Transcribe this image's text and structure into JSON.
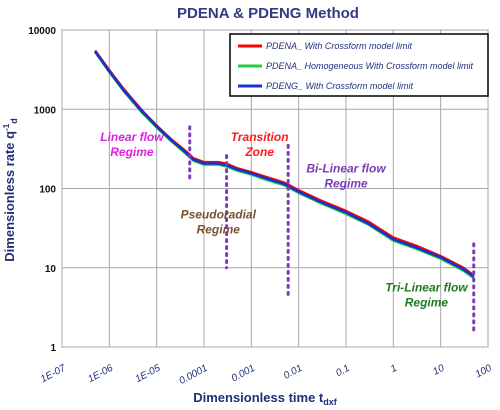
{
  "chart_data": {
    "type": "line",
    "title": "PDENA & PDENG Method",
    "xlabel": "Dimensionless time t",
    "xlabel_sub": "dxf",
    "ylabel": "Dimensionless rate q",
    "ylabel_sub": "-1",
    "ylabel_sub2": "d",
    "xscale": "log",
    "yscale": "log",
    "xlim": [
      1e-07,
      100
    ],
    "ylim": [
      1,
      10000
    ],
    "x_ticks": [
      "1E-07",
      "1E-06",
      "1E-05",
      "0.0001",
      "0.001",
      "0.01",
      "0.1",
      "1",
      "10",
      "100"
    ],
    "y_ticks": [
      "1",
      "10",
      "100",
      "1000",
      "10000"
    ],
    "grid": true,
    "legend_position": "top-right",
    "series": [
      {
        "name": "PDENA_ With Crossform model limit",
        "color": "#ff0000",
        "x": [
          5e-07,
          1e-06,
          2e-06,
          5e-06,
          1e-05,
          2e-05,
          4e-05,
          6e-05,
          0.0001,
          0.0002,
          0.0003,
          0.0005,
          0.001,
          0.002,
          0.005,
          0.01,
          0.03,
          0.1,
          0.3,
          1,
          3,
          10,
          30,
          50
        ],
        "y": [
          5500,
          3100,
          1800,
          950,
          620,
          420,
          300,
          240,
          215,
          215,
          205,
          180,
          160,
          140,
          118,
          95,
          70,
          52,
          38,
          24,
          19,
          14,
          10,
          8
        ]
      },
      {
        "name": "PDENA_ Homogeneous With Crossform model limit",
        "color": "#22cc44",
        "x": [
          5e-07,
          1e-06,
          2e-06,
          5e-06,
          1e-05,
          2e-05,
          4e-05,
          6e-05,
          0.0001,
          0.0002,
          0.0003,
          0.0005,
          0.001,
          0.002,
          0.005,
          0.01,
          0.03,
          0.1,
          0.3,
          1,
          3,
          10,
          30,
          50
        ],
        "y": [
          5300,
          2950,
          1700,
          900,
          590,
          400,
          280,
          225,
          200,
          200,
          190,
          168,
          150,
          130,
          110,
          88,
          65,
          48,
          35,
          22,
          17.5,
          13,
          9.2,
          7.4
        ]
      },
      {
        "name": "PDENG_ With Crossform model limit",
        "color": "#1a2fd0",
        "x": [
          5e-07,
          1e-06,
          2e-06,
          5e-06,
          1e-05,
          2e-05,
          4e-05,
          6e-05,
          0.0001,
          0.0002,
          0.0003,
          0.0005,
          0.001,
          0.002,
          0.005,
          0.01,
          0.03,
          0.1,
          0.3,
          1,
          3,
          10,
          30,
          50
        ],
        "y": [
          5400,
          3020,
          1750,
          925,
          605,
          410,
          290,
          232,
          207,
          207,
          197,
          174,
          155,
          135,
          114,
          91,
          67,
          50,
          36,
          23,
          18,
          13.5,
          9.6,
          7.7
        ]
      }
    ],
    "regime_markers": [
      {
        "x": 5e-05,
        "y1": 600,
        "y2": 130
      },
      {
        "x": 0.0003,
        "y1": 260,
        "y2": 10
      },
      {
        "x": 0.006,
        "y1": 350,
        "y2": 4
      },
      {
        "x": 50,
        "y1": 20,
        "y2": 1.5
      }
    ],
    "annotations": [
      {
        "lines": [
          "Linear flow",
          "Regime"
        ],
        "x": 3e-06,
        "y": 400,
        "color": "#e020e0"
      },
      {
        "lines": [
          "Transition",
          "Zone"
        ],
        "x": 0.0015,
        "y": 400,
        "color": "#ff1a1a"
      },
      {
        "lines": [
          "Pseudoradial",
          "Regime"
        ],
        "x": 0.0002,
        "y": 42,
        "color": "#7a5230"
      },
      {
        "lines": [
          "Bi-Linear flow",
          "Regime"
        ],
        "x": 0.1,
        "y": 160,
        "color": "#7a3cb8"
      },
      {
        "lines": [
          "Tri-Linear flow",
          "Regime"
        ],
        "x": 5,
        "y": 5,
        "color": "#1e7a1e"
      }
    ]
  }
}
